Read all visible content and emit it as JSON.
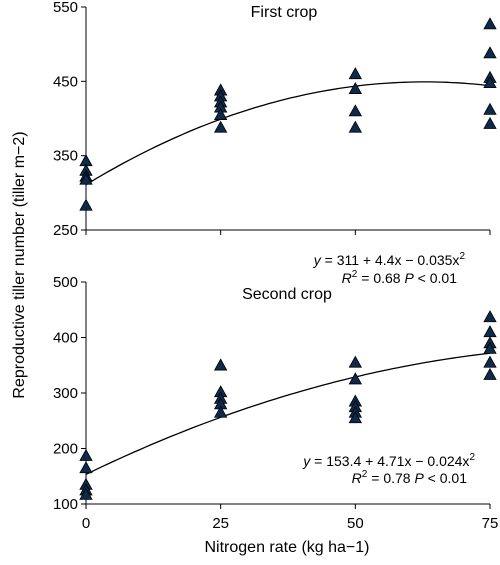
{
  "ylabel": "Reproductive tiller number (tiller m−2)",
  "xlabel": "Nitrogen rate (kg ha−1)",
  "marker_color": "#0d2a4a",
  "chart_data": [
    {
      "type": "scatter",
      "title": "First crop",
      "xlim": [
        0,
        75
      ],
      "ylim": [
        250,
        550
      ],
      "yticks": [
        250,
        350,
        450,
        550
      ],
      "xticks": [],
      "grid": false,
      "points": [
        {
          "x": 0,
          "y": 343
        },
        {
          "x": 0,
          "y": 330
        },
        {
          "x": 0,
          "y": 322
        },
        {
          "x": 0,
          "y": 318
        },
        {
          "x": 0,
          "y": 283
        },
        {
          "x": 25,
          "y": 438
        },
        {
          "x": 25,
          "y": 430
        },
        {
          "x": 25,
          "y": 422
        },
        {
          "x": 25,
          "y": 415
        },
        {
          "x": 25,
          "y": 405
        },
        {
          "x": 25,
          "y": 388
        },
        {
          "x": 50,
          "y": 460
        },
        {
          "x": 50,
          "y": 440
        },
        {
          "x": 50,
          "y": 410
        },
        {
          "x": 50,
          "y": 388
        },
        {
          "x": 75,
          "y": 527
        },
        {
          "x": 75,
          "y": 488
        },
        {
          "x": 75,
          "y": 455
        },
        {
          "x": 75,
          "y": 448
        },
        {
          "x": 75,
          "y": 412
        },
        {
          "x": 75,
          "y": 393
        }
      ],
      "fit": {
        "a": 311,
        "b": 4.4,
        "c": -0.035
      },
      "equation": {
        "line1": {
          "y": "y",
          "rest": " = 311 + 4.4x − 0.035x",
          "sup": "2"
        },
        "line2": {
          "r": "R",
          "rsup": "2",
          "rest": " = 0.68 ",
          "p": "P",
          "prest": " < 0.01"
        }
      }
    },
    {
      "type": "scatter",
      "title": "Second crop",
      "xlim": [
        0,
        75
      ],
      "ylim": [
        100,
        500
      ],
      "yticks": [
        100,
        200,
        300,
        400,
        500
      ],
      "xticks": [
        0,
        25,
        50,
        75
      ],
      "grid": false,
      "points": [
        {
          "x": 0,
          "y": 187
        },
        {
          "x": 0,
          "y": 165
        },
        {
          "x": 0,
          "y": 135
        },
        {
          "x": 0,
          "y": 125
        },
        {
          "x": 0,
          "y": 117
        },
        {
          "x": 25,
          "y": 350
        },
        {
          "x": 25,
          "y": 302
        },
        {
          "x": 25,
          "y": 290
        },
        {
          "x": 25,
          "y": 280
        },
        {
          "x": 25,
          "y": 265
        },
        {
          "x": 50,
          "y": 355
        },
        {
          "x": 50,
          "y": 325
        },
        {
          "x": 50,
          "y": 285
        },
        {
          "x": 50,
          "y": 275
        },
        {
          "x": 50,
          "y": 265
        },
        {
          "x": 50,
          "y": 255
        },
        {
          "x": 75,
          "y": 437
        },
        {
          "x": 75,
          "y": 410
        },
        {
          "x": 75,
          "y": 390
        },
        {
          "x": 75,
          "y": 380
        },
        {
          "x": 75,
          "y": 355
        },
        {
          "x": 75,
          "y": 333
        }
      ],
      "fit": {
        "a": 153.4,
        "b": 4.71,
        "c": -0.024
      },
      "equation": {
        "line1": {
          "y": "y",
          "rest": " = 153.4 + 4.71x − 0.024x",
          "sup": "2"
        },
        "line2": {
          "r": "R",
          "rsup": "2",
          "rest": " = 0.78 ",
          "p": "P",
          "prest": " < 0.01"
        }
      }
    }
  ]
}
